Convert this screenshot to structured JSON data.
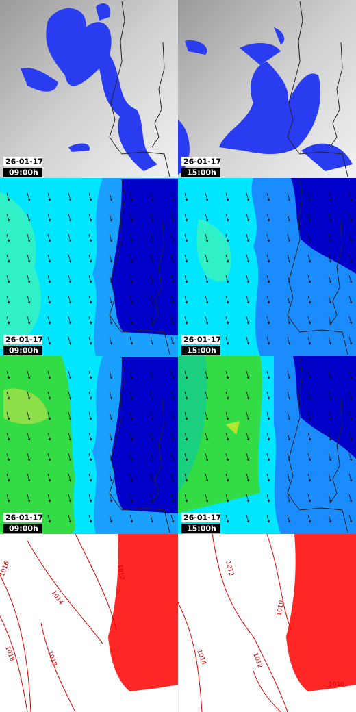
{
  "panels": [
    {
      "date": "26-01-17",
      "time": "09:00h"
    },
    {
      "date": "26-01-17",
      "time": "15:00h"
    },
    {
      "date": "26-01-17",
      "time": "09:00h"
    },
    {
      "date": "26-01-17",
      "time": "15:00h"
    },
    {
      "date": "26-01-17",
      "time": "09:00h"
    },
    {
      "date": "26-01-17",
      "time": "15:00h"
    }
  ],
  "isobar_labels": {
    "left": [
      "1016",
      "1014",
      "1018",
      "1018",
      "1012"
    ],
    "right": [
      "1012",
      "1010",
      "1014",
      "1012",
      "1010"
    ]
  }
}
